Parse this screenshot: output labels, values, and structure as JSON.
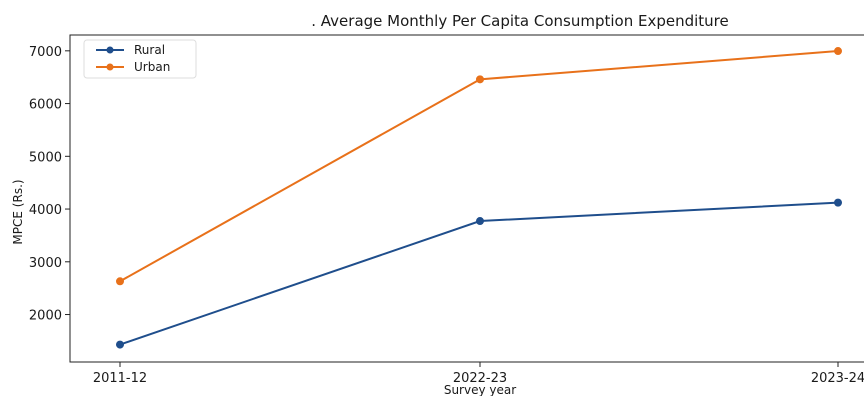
{
  "chart_data": {
    "type": "line",
    "title": ". Average Monthly Per Capita Consumption Expenditure",
    "xlabel": "Survey year",
    "ylabel": "MPCE (Rs.)",
    "categories": [
      "2011-12",
      "2022-23",
      "2023-24"
    ],
    "series": [
      {
        "name": "Rural",
        "values": [
          1430,
          3773,
          4122
        ],
        "color": "#1f4e8c"
      },
      {
        "name": "Urban",
        "values": [
          2630,
          6459,
          6996
        ],
        "color": "#e8711a"
      }
    ],
    "ylim": [
      1100,
      7300
    ],
    "yticks": [
      2000,
      3000,
      4000,
      5000,
      6000,
      7000
    ],
    "grid": false,
    "legend": "top-left",
    "marker": "circle"
  }
}
